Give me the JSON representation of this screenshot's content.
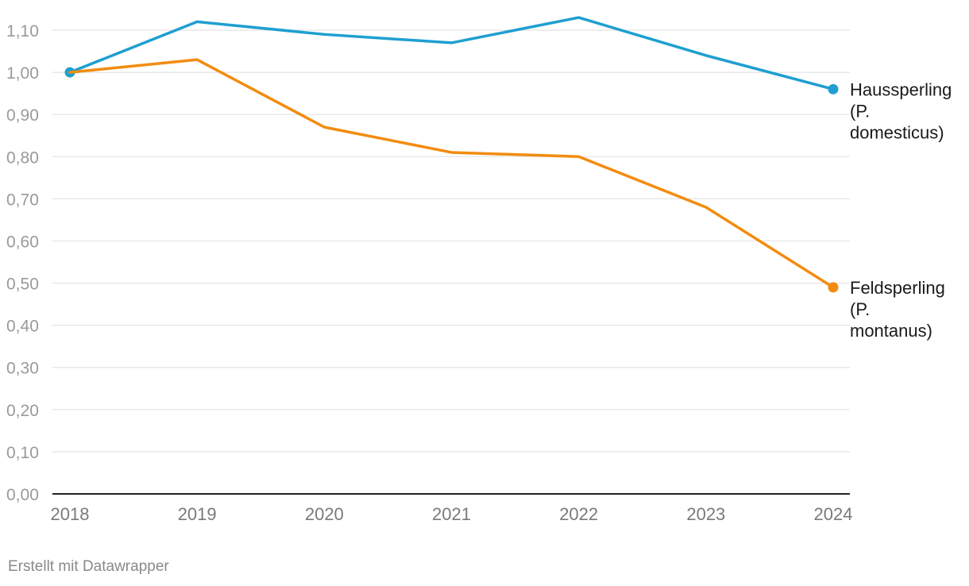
{
  "chart_data": {
    "type": "line",
    "title": "",
    "xlabel": "",
    "ylabel": "",
    "x": [
      "2018",
      "2019",
      "2020",
      "2021",
      "2022",
      "2023",
      "2024"
    ],
    "ylim": [
      0,
      1.1
    ],
    "y_ticks": [
      "0,00",
      "0,10",
      "0,20",
      "0,30",
      "0,40",
      "0,50",
      "0,60",
      "0,70",
      "0,80",
      "0,90",
      "1,00",
      "1,10"
    ],
    "grid": true,
    "legend": "direct labels at line ends",
    "series": [
      {
        "name_lines": [
          "Haussperling",
          "(P.",
          "domesticus)"
        ],
        "color": "#1f9fd0",
        "values": [
          1.0,
          1.12,
          1.09,
          1.07,
          1.13,
          1.04,
          0.96
        ]
      },
      {
        "name_lines": [
          "Feldsperling",
          "(P.",
          "montanus)"
        ],
        "color": "#f28c0f",
        "values": [
          1.0,
          1.03,
          0.87,
          0.81,
          0.8,
          0.68,
          0.49
        ]
      }
    ]
  },
  "footer": {
    "credit": "Erstellt mit Datawrapper"
  }
}
